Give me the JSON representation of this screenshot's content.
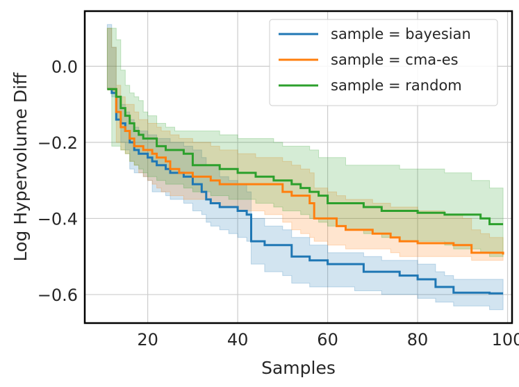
{
  "chart_data": {
    "type": "line",
    "title": "",
    "xlabel": "Samples",
    "ylabel": "Log Hypervolume Diff",
    "xlim": [
      6,
      101
    ],
    "ylim": [
      -0.675,
      0.145
    ],
    "xticks": [
      20,
      40,
      60,
      80,
      100
    ],
    "yticks": [
      0.0,
      -0.2,
      -0.4,
      -0.6
    ],
    "ytick_labels": [
      "0.0",
      "−0.2",
      "−0.4",
      "−0.6"
    ],
    "grid": true,
    "legend_position": "top-right",
    "series": [
      {
        "name": "sample = bayesian",
        "color": "#1f77b4",
        "x": [
          11,
          12,
          13,
          14,
          15,
          16,
          17,
          18,
          19,
          20,
          21,
          22,
          23,
          24,
          25,
          26,
          28,
          30,
          32,
          33,
          34,
          36,
          38,
          40,
          42,
          43,
          46,
          50,
          52,
          56,
          58,
          60,
          66,
          68,
          72,
          76,
          80,
          84,
          86,
          88,
          92,
          96,
          99
        ],
        "y": [
          -0.06,
          -0.07,
          -0.14,
          -0.15,
          -0.17,
          -0.2,
          -0.22,
          -0.23,
          -0.23,
          -0.24,
          -0.25,
          -0.26,
          -0.26,
          -0.27,
          -0.28,
          -0.28,
          -0.29,
          -0.31,
          -0.33,
          -0.35,
          -0.36,
          -0.37,
          -0.37,
          -0.38,
          -0.39,
          -0.46,
          -0.47,
          -0.47,
          -0.5,
          -0.51,
          -0.51,
          -0.52,
          -0.52,
          -0.54,
          -0.54,
          -0.55,
          -0.56,
          -0.58,
          -0.58,
          -0.595,
          -0.595,
          -0.597,
          -0.597
        ],
        "lower": [
          -0.06,
          -0.08,
          -0.14,
          -0.2,
          -0.22,
          -0.27,
          -0.28,
          -0.28,
          -0.29,
          -0.3,
          -0.33,
          -0.33,
          -0.33,
          -0.34,
          -0.35,
          -0.35,
          -0.36,
          -0.38,
          -0.39,
          -0.41,
          -0.42,
          -0.43,
          -0.44,
          -0.45,
          -0.46,
          -0.52,
          -0.54,
          -0.55,
          -0.57,
          -0.58,
          -0.58,
          -0.58,
          -0.59,
          -0.59,
          -0.6,
          -0.6,
          -0.61,
          -0.62,
          -0.62,
          -0.63,
          -0.63,
          -0.64,
          -0.64
        ],
        "upper": [
          0.11,
          0.05,
          -0.08,
          -0.1,
          -0.12,
          -0.14,
          -0.16,
          -0.17,
          -0.17,
          -0.18,
          -0.18,
          -0.19,
          -0.19,
          -0.19,
          -0.2,
          -0.2,
          -0.21,
          -0.22,
          -0.24,
          -0.26,
          -0.26,
          -0.29,
          -0.3,
          -0.31,
          -0.33,
          -0.4,
          -0.42,
          -0.43,
          -0.45,
          -0.47,
          -0.47,
          -0.49,
          -0.49,
          -0.5,
          -0.51,
          -0.51,
          -0.52,
          -0.54,
          -0.55,
          -0.56,
          -0.56,
          -0.56,
          -0.56
        ]
      },
      {
        "name": "sample = cma-es",
        "color": "#ff7f0e",
        "x": [
          11,
          12,
          13,
          14,
          15,
          16,
          17,
          18,
          19,
          20,
          21,
          22,
          23,
          24,
          25,
          26,
          27,
          28,
          30,
          32,
          34,
          36,
          40,
          44,
          46,
          50,
          52,
          54,
          56,
          57,
          60,
          62,
          64,
          70,
          74,
          76,
          80,
          86,
          88,
          90,
          92,
          94,
          96,
          99
        ],
        "y": [
          -0.06,
          -0.06,
          -0.12,
          -0.16,
          -0.17,
          -0.19,
          -0.21,
          -0.21,
          -0.22,
          -0.22,
          -0.23,
          -0.24,
          -0.24,
          -0.25,
          -0.27,
          -0.27,
          -0.28,
          -0.28,
          -0.29,
          -0.29,
          -0.3,
          -0.31,
          -0.31,
          -0.31,
          -0.31,
          -0.33,
          -0.34,
          -0.34,
          -0.36,
          -0.4,
          -0.4,
          -0.42,
          -0.43,
          -0.44,
          -0.45,
          -0.46,
          -0.465,
          -0.465,
          -0.47,
          -0.47,
          -0.49,
          -0.49,
          -0.49,
          -0.495
        ],
        "lower": [
          -0.06,
          -0.07,
          -0.2,
          -0.22,
          -0.23,
          -0.25,
          -0.26,
          -0.28,
          -0.29,
          -0.3,
          -0.31,
          -0.32,
          -0.33,
          -0.33,
          -0.34,
          -0.34,
          -0.34,
          -0.35,
          -0.35,
          -0.35,
          -0.36,
          -0.37,
          -0.38,
          -0.38,
          -0.39,
          -0.41,
          -0.43,
          -0.44,
          -0.45,
          -0.46,
          -0.47,
          -0.47,
          -0.48,
          -0.48,
          -0.49,
          -0.5,
          -0.5,
          -0.5,
          -0.5,
          -0.5,
          -0.51,
          -0.51,
          -0.51,
          -0.51
        ],
        "upper": [
          0.1,
          0.05,
          -0.05,
          -0.08,
          -0.1,
          -0.1,
          -0.12,
          -0.14,
          -0.14,
          -0.15,
          -0.15,
          -0.16,
          -0.17,
          -0.17,
          -0.18,
          -0.18,
          -0.19,
          -0.19,
          -0.2,
          -0.2,
          -0.21,
          -0.22,
          -0.23,
          -0.24,
          -0.24,
          -0.25,
          -0.26,
          -0.27,
          -0.28,
          -0.32,
          -0.33,
          -0.34,
          -0.35,
          -0.36,
          -0.37,
          -0.37,
          -0.38,
          -0.39,
          -0.39,
          -0.4,
          -0.43,
          -0.44,
          -0.45,
          -0.47
        ]
      },
      {
        "name": "sample = random",
        "color": "#2ca02c",
        "x": [
          11,
          12,
          13,
          14,
          15,
          16,
          17,
          18,
          19,
          20,
          22,
          24,
          26,
          28,
          30,
          34,
          36,
          38,
          40,
          44,
          48,
          50,
          52,
          54,
          56,
          58,
          60,
          64,
          68,
          72,
          76,
          80,
          86,
          88,
          92,
          94,
          96,
          99
        ],
        "y": [
          -0.06,
          -0.06,
          -0.08,
          -0.11,
          -0.13,
          -0.15,
          -0.17,
          -0.18,
          -0.19,
          -0.19,
          -0.21,
          -0.22,
          -0.22,
          -0.23,
          -0.26,
          -0.26,
          -0.27,
          -0.27,
          -0.28,
          -0.29,
          -0.3,
          -0.3,
          -0.31,
          -0.32,
          -0.33,
          -0.34,
          -0.36,
          -0.36,
          -0.37,
          -0.38,
          -0.38,
          -0.385,
          -0.39,
          -0.39,
          -0.39,
          -0.4,
          -0.415,
          -0.415
        ],
        "lower": [
          -0.06,
          -0.21,
          -0.21,
          -0.22,
          -0.23,
          -0.25,
          -0.26,
          -0.27,
          -0.28,
          -0.29,
          -0.3,
          -0.31,
          -0.31,
          -0.32,
          -0.33,
          -0.34,
          -0.34,
          -0.35,
          -0.35,
          -0.36,
          -0.37,
          -0.38,
          -0.38,
          -0.39,
          -0.4,
          -0.41,
          -0.42,
          -0.43,
          -0.44,
          -0.45,
          -0.46,
          -0.46,
          -0.47,
          -0.48,
          -0.48,
          -0.49,
          -0.5,
          -0.5
        ],
        "upper": [
          0.1,
          0.1,
          0.07,
          -0.01,
          -0.05,
          -0.07,
          -0.08,
          -0.09,
          -0.12,
          -0.13,
          -0.15,
          -0.16,
          -0.17,
          -0.17,
          -0.17,
          -0.17,
          -0.18,
          -0.18,
          -0.19,
          -0.19,
          -0.2,
          -0.21,
          -0.21,
          -0.21,
          -0.22,
          -0.24,
          -0.24,
          -0.26,
          -0.26,
          -0.26,
          -0.27,
          -0.27,
          -0.28,
          -0.28,
          -0.3,
          -0.3,
          -0.32,
          -0.32
        ]
      }
    ]
  }
}
